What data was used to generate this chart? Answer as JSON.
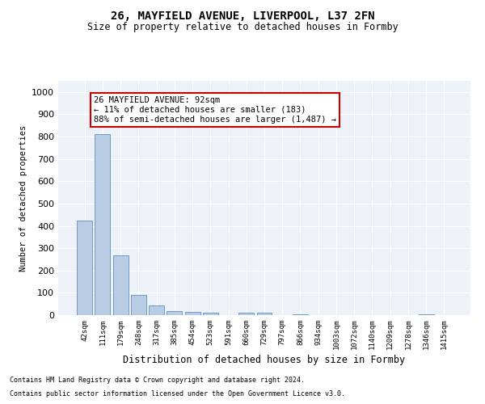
{
  "title1": "26, MAYFIELD AVENUE, LIVERPOOL, L37 2FN",
  "title2": "Size of property relative to detached houses in Formby",
  "xlabel": "Distribution of detached houses by size in Formby",
  "ylabel": "Number of detached properties",
  "categories": [
    "42sqm",
    "111sqm",
    "179sqm",
    "248sqm",
    "317sqm",
    "385sqm",
    "454sqm",
    "523sqm",
    "591sqm",
    "660sqm",
    "729sqm",
    "797sqm",
    "866sqm",
    "934sqm",
    "1003sqm",
    "1072sqm",
    "1140sqm",
    "1209sqm",
    "1278sqm",
    "1346sqm",
    "1415sqm"
  ],
  "values": [
    425,
    810,
    268,
    91,
    42,
    18,
    15,
    10,
    0,
    10,
    10,
    0,
    5,
    0,
    0,
    0,
    0,
    0,
    0,
    5,
    0
  ],
  "bar_color": "#b8cce4",
  "bar_edgecolor": "#6090c0",
  "annotation_title": "26 MAYFIELD AVENUE: 92sqm",
  "annotation_line2": "← 11% of detached houses are smaller (183)",
  "annotation_line3": "88% of semi-detached houses are larger (1,487) →",
  "annotation_box_color": "#ffffff",
  "annotation_box_edgecolor": "#cc0000",
  "ylim": [
    0,
    1050
  ],
  "yticks": [
    0,
    100,
    200,
    300,
    400,
    500,
    600,
    700,
    800,
    900,
    1000
  ],
  "footnote1": "Contains HM Land Registry data © Crown copyright and database right 2024.",
  "footnote2": "Contains public sector information licensed under the Open Government Licence v3.0.",
  "background_color": "#edf2f9"
}
